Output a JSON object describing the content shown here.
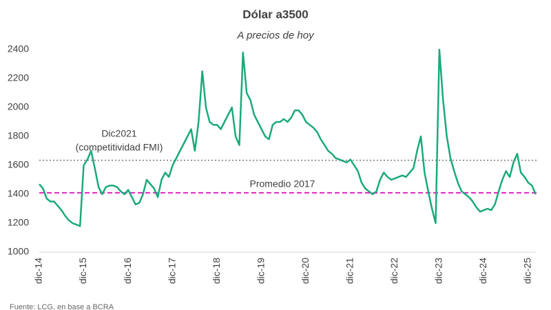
{
  "chart_data": {
    "type": "line",
    "title": "Dólar a3500",
    "subtitle": "A precios de hoy",
    "source": "Fuente: LCG, en base a BCRA",
    "categories": [
      "dic-14",
      null,
      null,
      null,
      null,
      null,
      null,
      null,
      null,
      null,
      null,
      null,
      "dic-15",
      null,
      null,
      null,
      null,
      null,
      null,
      null,
      null,
      null,
      null,
      null,
      "dic-16",
      null,
      null,
      null,
      null,
      null,
      null,
      null,
      null,
      null,
      null,
      null,
      "dic-17",
      null,
      null,
      null,
      null,
      null,
      null,
      null,
      null,
      null,
      null,
      null,
      "dic-18",
      null,
      null,
      null,
      null,
      null,
      null,
      null,
      null,
      null,
      null,
      null,
      "dic-19",
      null,
      null,
      null,
      null,
      null,
      null,
      null,
      null,
      null,
      null,
      null,
      "dic-20",
      null,
      null,
      null,
      null,
      null,
      null,
      null,
      null,
      null,
      null,
      null,
      "dic-21",
      null,
      null,
      null,
      null,
      null,
      null,
      null,
      null,
      null,
      null,
      null,
      "dic-22",
      null,
      null,
      null,
      null,
      null,
      null,
      null,
      null,
      null,
      null,
      null,
      "dic-23",
      null,
      null,
      null,
      null,
      null,
      null,
      null,
      null,
      null,
      null,
      null,
      "dic-24",
      null,
      null,
      null,
      null,
      null,
      null,
      null,
      null,
      null,
      null,
      null,
      "dic-25",
      null,
      null
    ],
    "series": [
      {
        "color": "#1aa97b",
        "values": [
          1470,
          1440,
          1370,
          1350,
          1350,
          1320,
          1290,
          1250,
          1220,
          1200,
          1190,
          1180,
          1600,
          1640,
          1700,
          1580,
          1450,
          1400,
          1450,
          1460,
          1460,
          1450,
          1420,
          1400,
          1430,
          1380,
          1330,
          1340,
          1400,
          1500,
          1470,
          1440,
          1380,
          1500,
          1550,
          1520,
          1600,
          1650,
          1700,
          1750,
          1800,
          1850,
          1700,
          1900,
          2250,
          2000,
          1900,
          1880,
          1880,
          1850,
          1900,
          1950,
          2000,
          1800,
          1740,
          2380,
          2100,
          2050,
          1950,
          1900,
          1850,
          1800,
          1780,
          1880,
          1900,
          1900,
          1920,
          1900,
          1930,
          1980,
          1980,
          1950,
          1900,
          1880,
          1860,
          1830,
          1780,
          1740,
          1700,
          1680,
          1650,
          1640,
          1630,
          1620,
          1640,
          1600,
          1560,
          1480,
          1440,
          1420,
          1400,
          1420,
          1500,
          1550,
          1520,
          1500,
          1510,
          1520,
          1530,
          1520,
          1550,
          1580,
          1700,
          1800,
          1550,
          1420,
          1300,
          1200,
          2400,
          2050,
          1800,
          1650,
          1560,
          1480,
          1420,
          1400,
          1380,
          1350,
          1310,
          1280,
          1290,
          1300,
          1290,
          1330,
          1420,
          1500,
          1560,
          1520,
          1620,
          1680,
          1550,
          1520,
          1480,
          1460,
          1400
        ]
      }
    ],
    "ylim": [
      1000,
      2400
    ],
    "yticks": [
      1000,
      1200,
      1400,
      1600,
      1800,
      2000,
      2200,
      2400
    ],
    "reference_lines": [
      {
        "value": 1635,
        "color": "#808080",
        "style": "dotted",
        "label": "Dic2021",
        "label2": "(competitividad FMI)"
      },
      {
        "value": 1410,
        "color": "#e020c0",
        "style": "dashed",
        "label": "Promedio 2017"
      }
    ]
  }
}
